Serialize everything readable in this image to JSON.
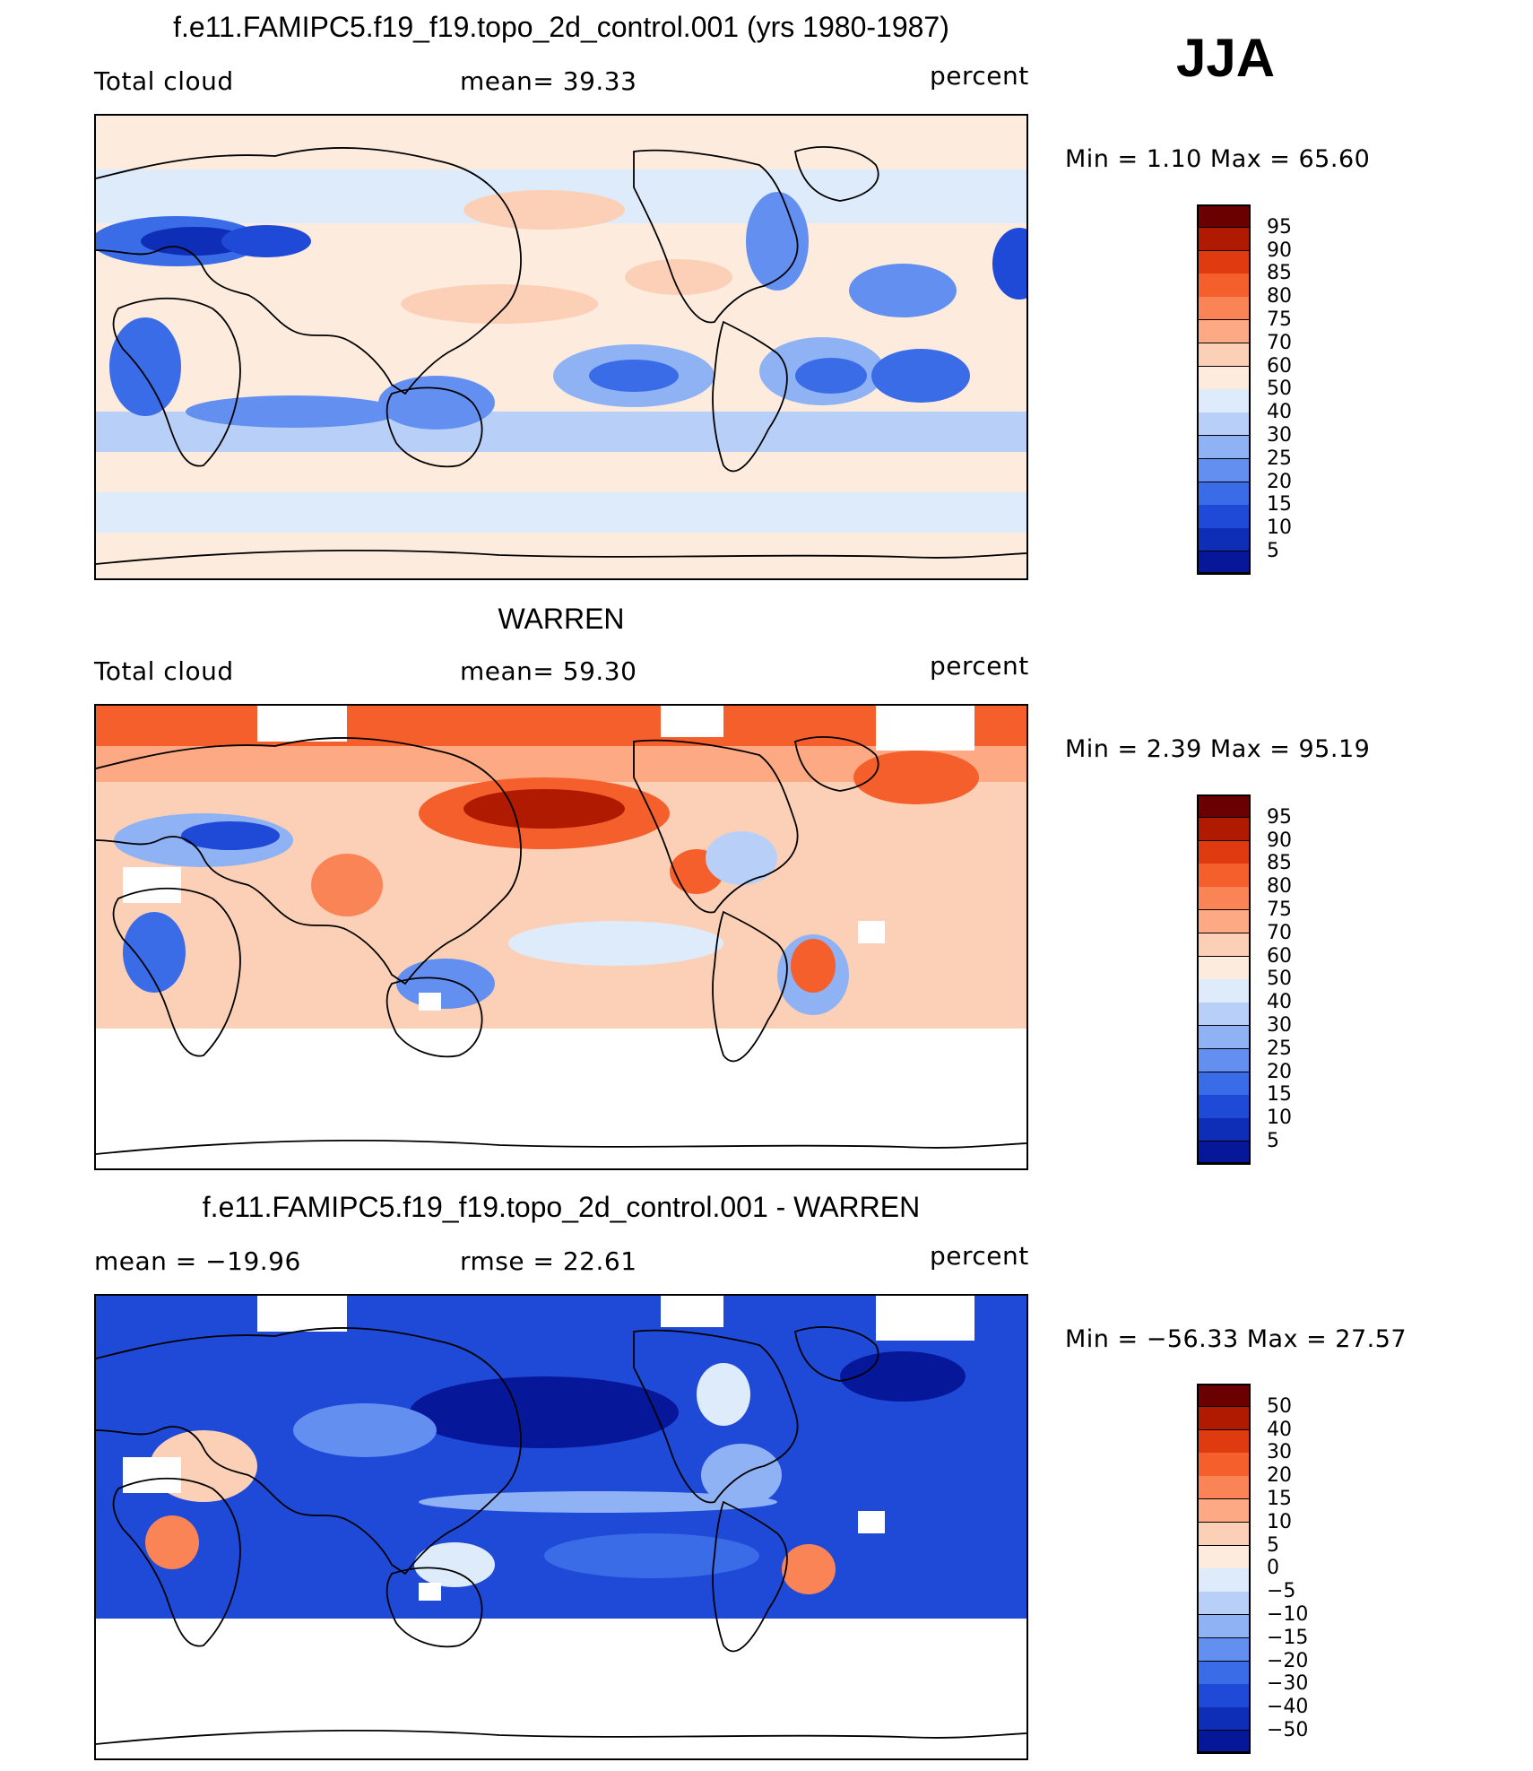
{
  "season": "JJA",
  "panels": [
    {
      "title": "f.e11.FAMIPC5.f19_f19.topo_2d_control.001 (yrs 1980-1987)",
      "left_label": "Total cloud",
      "center_label": "mean=   39.33",
      "right_label": "percent",
      "minmax_label": "Min =    1.10 Max =   65.60",
      "colorbar_labels": [
        "95",
        "90",
        "85",
        "80",
        "75",
        "70",
        "60",
        "50",
        "40",
        "30",
        "25",
        "20",
        "15",
        "10",
        "5"
      ],
      "map_style": "model"
    },
    {
      "title": "WARREN",
      "left_label": "Total cloud",
      "center_label": "mean=   59.30",
      "right_label": "percent",
      "minmax_label": "Min =    2.39 Max =   95.19",
      "colorbar_labels": [
        "95",
        "90",
        "85",
        "80",
        "75",
        "70",
        "60",
        "50",
        "40",
        "30",
        "25",
        "20",
        "15",
        "10",
        "5"
      ],
      "map_style": "obs"
    },
    {
      "title": "f.e11.FAMIPC5.f19_f19.topo_2d_control.001 - WARREN",
      "left_label": "mean  = −19.96",
      "center_label": "rmse  =   22.61",
      "right_label": "percent",
      "minmax_label": "Min = −56.33 Max =   27.57",
      "colorbar_labels": [
        "50",
        "40",
        "30",
        "20",
        "15",
        "10",
        "5",
        "0",
        "−5",
        "−10",
        "−15",
        "−20",
        "−30",
        "−40",
        "−50"
      ],
      "map_style": "diff"
    }
  ],
  "colors": {
    "palette": [
      "#6b0000",
      "#b01a00",
      "#e03a10",
      "#f45f2c",
      "#fb8456",
      "#fda983",
      "#fcd0b6",
      "#fdecdd",
      "#deebfb",
      "#b8d0f8",
      "#8fb2f5",
      "#6390f0",
      "#3a6ce8",
      "#1f4ad8",
      "#0e2eb8",
      "#06179a",
      "#000a7a"
    ]
  }
}
